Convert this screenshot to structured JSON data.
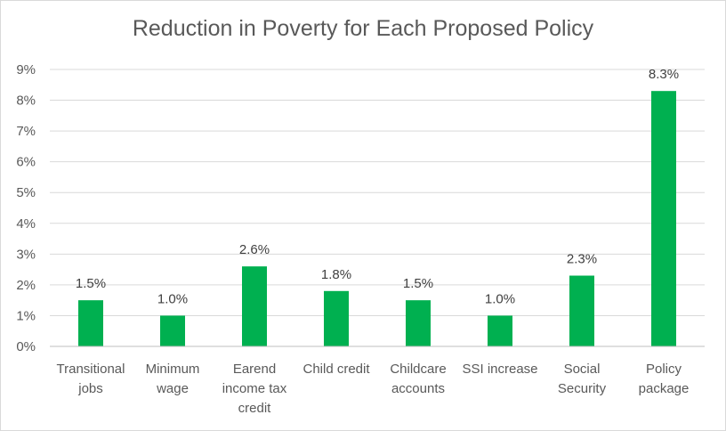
{
  "chart_data": {
    "type": "bar",
    "title": "Reduction in Poverty for Each Proposed Policy",
    "xlabel": "",
    "ylabel": "",
    "ylim": [
      0,
      9
    ],
    "y_ticks": [
      "0%",
      "1%",
      "2%",
      "3%",
      "4%",
      "5%",
      "6%",
      "7%",
      "8%",
      "9%"
    ],
    "categories": [
      [
        "Transitional",
        "jobs"
      ],
      [
        "Minimum",
        "wage"
      ],
      [
        "Earend",
        "income tax",
        "credit"
      ],
      [
        "Child credit"
      ],
      [
        "Childcare",
        "accounts"
      ],
      [
        "SSI increase"
      ],
      [
        "Social",
        "Security"
      ],
      [
        "Policy",
        "package"
      ]
    ],
    "values": [
      1.5,
      1.0,
      2.6,
      1.8,
      1.5,
      1.0,
      2.3,
      8.3
    ],
    "data_labels": [
      "1.5%",
      "1.0%",
      "2.6%",
      "1.8%",
      "1.5%",
      "1.0%",
      "2.3%",
      "8.3%"
    ],
    "grid": true,
    "legend": "none",
    "bar_color": "#00b050"
  }
}
